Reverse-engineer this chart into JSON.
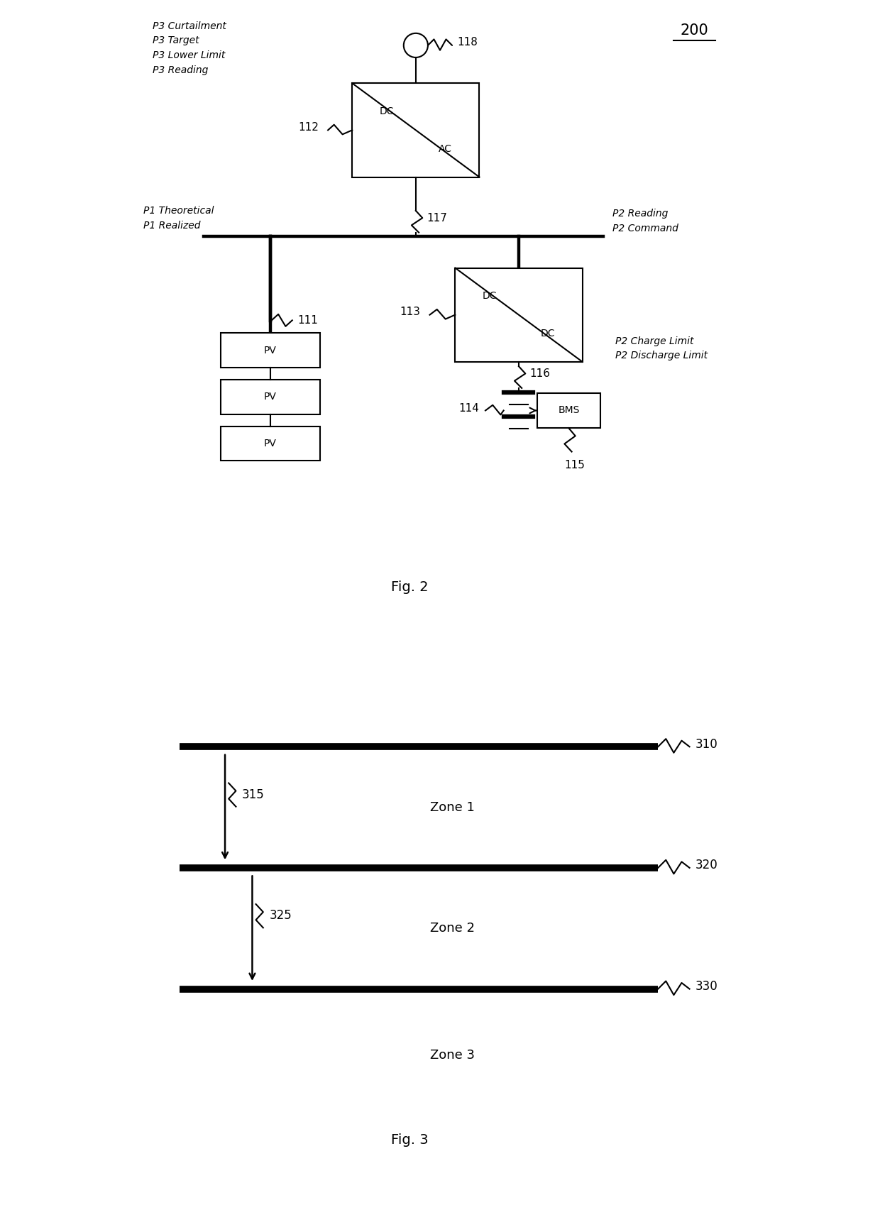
{
  "fig_width": 12.4,
  "fig_height": 17.22,
  "bg_color": "#ffffff",
  "fig2_label": "Fig. 2",
  "fig3_label": "Fig. 3",
  "diagram_number": "200",
  "p3_group": "P3 Curtailment\nP3 Target\nP3 Lower Limit\nP3 Reading",
  "p1_group": "P1 Theoretical\nP1 Realized",
  "p2_reading": "P2 Reading\nP2 Command",
  "p2_charge": "P2 Charge Limit\nP2 Discharge Limit",
  "node118": "118",
  "node112": "112",
  "node117": "117",
  "node111": "111",
  "node113": "113",
  "node116": "116",
  "node114": "114",
  "node115": "115",
  "pv": "PV",
  "ac": "AC",
  "dc_label": "DC",
  "bms": "BMS",
  "zone1": "Zone 1",
  "zone2": "Zone 2",
  "zone3": "Zone 3",
  "n310": "310",
  "n315": "315",
  "n320": "320",
  "n325": "325",
  "n330": "330"
}
